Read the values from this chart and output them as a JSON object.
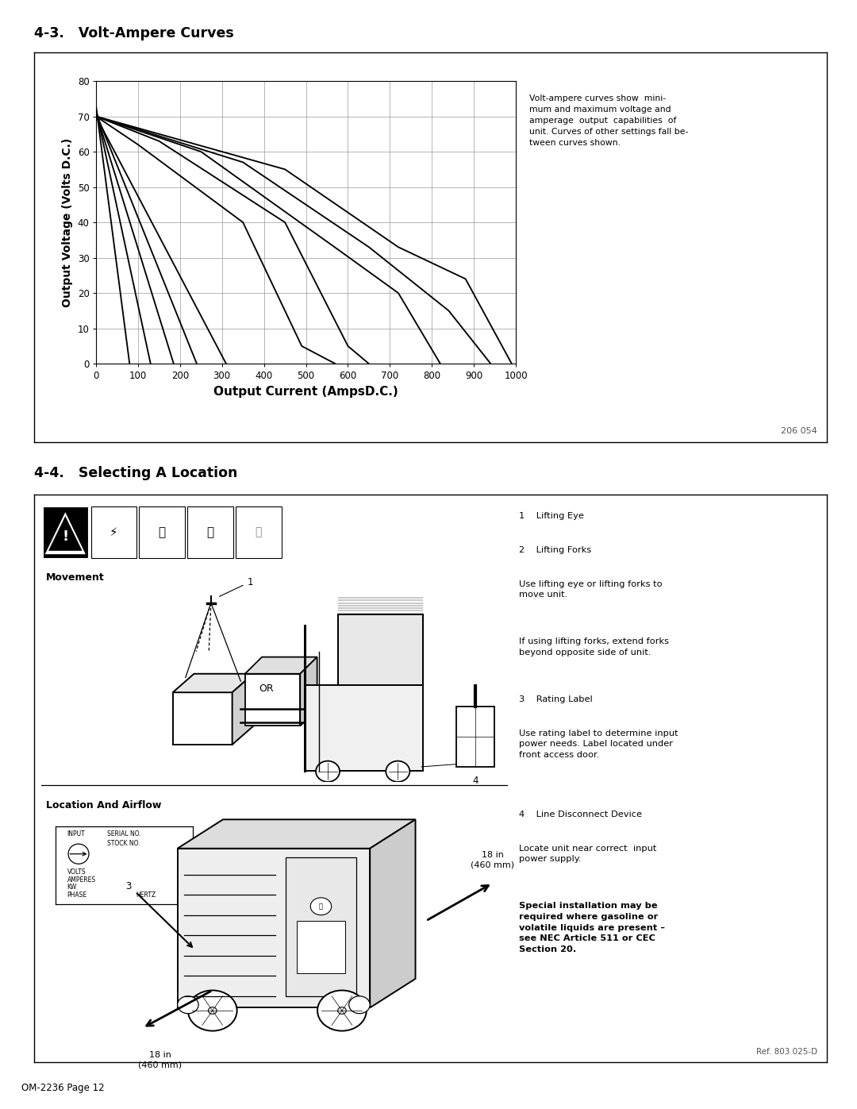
{
  "page_bg": "#ffffff",
  "section1_title": "4-3.   Volt-Ampere Curves",
  "section2_title": "4-4.   Selecting A Location",
  "chart_xlabel": "Output Current (AmpsD.C.)",
  "chart_ylabel": "Output Voltage (Volts D.C.)",
  "chart_xlim": [
    0,
    1000
  ],
  "chart_ylim": [
    0,
    80
  ],
  "chart_xticks": [
    0,
    100,
    200,
    300,
    400,
    500,
    600,
    700,
    800,
    900,
    1000
  ],
  "chart_yticks": [
    0,
    10,
    20,
    30,
    40,
    50,
    60,
    70,
    80
  ],
  "chart_note": "Volt-ampere curves show  mini-\nmum and maximum voltage and\namperage  output  capabilities  of\nunit. Curves of other settings fall be-\ntween curves shown.",
  "chart_ref": "206 054",
  "curves": [
    [
      [
        0,
        80
      ],
      [
        73,
        0
      ]
    ],
    [
      [
        0,
        130
      ],
      [
        72,
        0
      ]
    ],
    [
      [
        0,
        185
      ],
      [
        71,
        0
      ]
    ],
    [
      [
        0,
        240
      ],
      [
        71,
        0
      ]
    ],
    [
      [
        0,
        310
      ],
      [
        70,
        0
      ]
    ],
    [
      [
        0,
        100,
        350,
        490,
        570
      ],
      [
        70,
        62,
        40,
        5,
        0
      ]
    ],
    [
      [
        0,
        150,
        450,
        600,
        650
      ],
      [
        70,
        63,
        40,
        5,
        0
      ]
    ],
    [
      [
        0,
        250,
        580,
        720,
        820
      ],
      [
        70,
        60,
        32,
        20,
        0
      ]
    ],
    [
      [
        0,
        350,
        650,
        840,
        940
      ],
      [
        70,
        57,
        33,
        15,
        0
      ]
    ],
    [
      [
        0,
        450,
        720,
        880,
        990
      ],
      [
        70,
        55,
        33,
        24,
        0
      ]
    ]
  ],
  "footer_left": "OM-2236 Page 12",
  "section2_ref": "Ref. 803 025-D",
  "movement_label": "Movement",
  "location_airflow_label": "Location And Airflow",
  "or_text": "OR",
  "right_items": [
    {
      "text": "1    Lifting Eye",
      "bold": false
    },
    {
      "text": "2    Lifting Forks",
      "bold": false
    },
    {
      "text": "Use lifting eye or lifting forks to\nmove unit.",
      "bold": false
    },
    {
      "text": "If using lifting forks, extend forks\nbeyond opposite side of unit.",
      "bold": false
    },
    {
      "text": "3    Rating Label",
      "bold": false
    },
    {
      "text": "Use rating label to determine input\npower needs. Label located under\nfront access door.",
      "bold": false
    },
    {
      "text": "4    Line Disconnect Device",
      "bold": false
    },
    {
      "text": "Locate unit near correct  input\npower supply.",
      "bold": false
    },
    {
      "text": "Special installation may be\nrequired where gasoline or\nvolatile liquids are present –\nsee NEC Article 511 or CEC\nSection 20.",
      "bold": true
    }
  ],
  "dim_right": "18 in\n(460 mm)",
  "dim_bottom": "18 in\n(460 mm)"
}
